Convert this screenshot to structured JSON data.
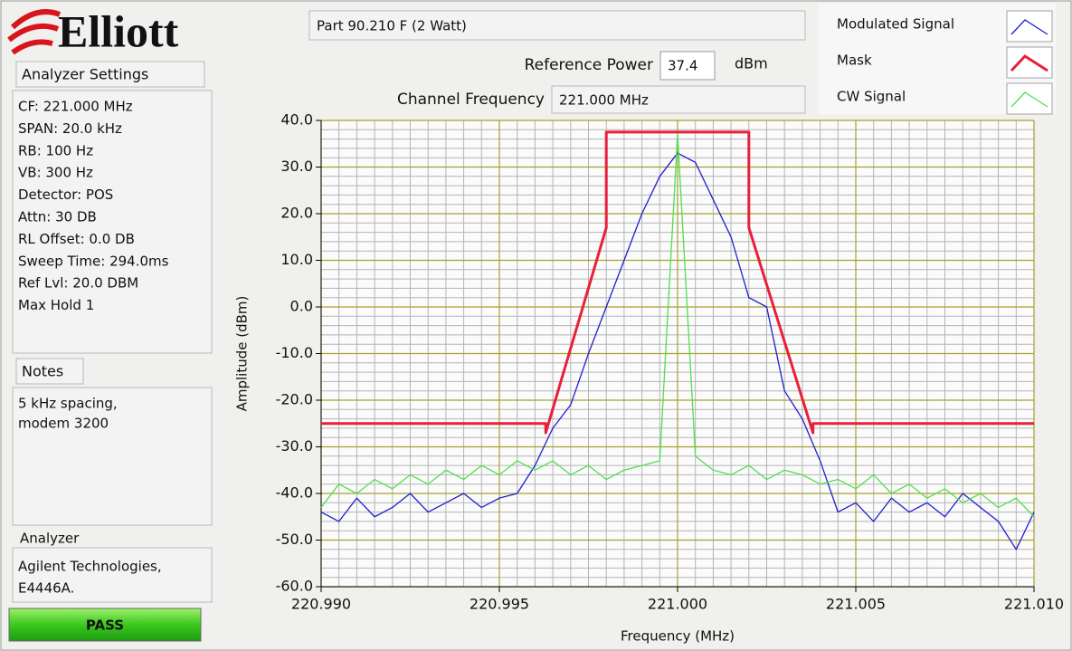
{
  "logo": {
    "text": "Elliott"
  },
  "settings": {
    "title": "Analyzer Settings",
    "items": [
      "CF: 221.000 MHz",
      "SPAN: 20.0 kHz",
      "RB: 100 Hz",
      "VB: 300 Hz",
      "Detector: POS",
      "Attn: 30 DB",
      "RL Offset: 0.0 DB",
      "Sweep Time: 294.0ms",
      "Ref Lvl: 20.0 DBM",
      "Max Hold 1"
    ]
  },
  "notes": {
    "title": "Notes",
    "lines": [
      "5 kHz spacing,",
      "modem 3200"
    ]
  },
  "analyzer": {
    "title": "Analyzer",
    "lines": [
      "Agilent Technologies,",
      "E4446A."
    ]
  },
  "status": {
    "label": "PASS"
  },
  "header": {
    "part": "Part 90.210 F (2 Watt)",
    "reference_power_label": "Reference Power",
    "reference_power_value": "37.4",
    "reference_power_unit": "dBm",
    "channel_frequency_label": "Channel Frequency",
    "channel_frequency_value": "221.000 MHz"
  },
  "chart_data": {
    "type": "line",
    "xlabel": "Frequency (MHz)",
    "ylabel": "Amplitude (dBm)",
    "legend": "top-right",
    "grid": true,
    "xlim": [
      220.99,
      221.01
    ],
    "ylim": [
      -60,
      40
    ],
    "xticks": [
      {
        "value": 220.99,
        "label": "220.990"
      },
      220.995,
      {
        "value": 221,
        "label": "221.000"
      },
      221.005,
      {
        "value": 221.01,
        "label": "221.010"
      }
    ],
    "yticks": [
      {
        "value": -60,
        "label": "-60.0"
      },
      {
        "value": -50,
        "label": "-50.0"
      },
      {
        "value": -40,
        "label": "-40.0"
      },
      {
        "value": -30,
        "label": "-30.0"
      },
      {
        "value": -20,
        "label": "-20.0"
      },
      {
        "value": -10,
        "label": "-10.0"
      },
      {
        "value": 0,
        "label": "0.0"
      },
      {
        "value": 10,
        "label": "10.0"
      },
      {
        "value": 20,
        "label": "20.0"
      },
      {
        "value": 30,
        "label": "30.0"
      },
      {
        "value": 40,
        "label": "40.0"
      }
    ],
    "x": [
      220.99,
      220.9905,
      220.991,
      220.9915,
      220.992,
      220.9925,
      220.993,
      220.9935,
      220.994,
      220.9945,
      220.995,
      220.9955,
      220.996,
      220.9965,
      220.997,
      220.9975,
      220.998,
      220.9985,
      220.999,
      220.9995,
      221,
      221.0005,
      221.001,
      221.0015,
      221.002,
      221.0025,
      221.003,
      221.0035,
      221.004,
      221.0045,
      221.005,
      221.0055,
      221.006,
      221.0065,
      221.007,
      221.0075,
      221.008,
      221.0085,
      221.009,
      221.0095,
      221.01
    ],
    "series": [
      {
        "name": "Modulated Signal",
        "color": "#1f1fd0",
        "width": 1.3,
        "values": [
          -44,
          -46,
          -41,
          -45,
          -43,
          -40,
          -44,
          -42,
          -40,
          -43,
          -41,
          -40,
          -34,
          -26,
          -21,
          -10,
          0,
          10,
          20,
          28,
          33,
          31,
          23,
          15,
          2,
          0,
          -18,
          -24,
          -33,
          -44,
          -42,
          -46,
          -41,
          -44,
          -42,
          -45,
          -40,
          -43,
          -46,
          -52,
          -44
        ]
      },
      {
        "name": "Mask",
        "color": "#e8203a",
        "width": 3,
        "x": [
          220.99,
          220.9963,
          220.9963,
          220.998,
          220.998,
          221.002,
          221.002,
          221.0038,
          221.0038,
          221.01
        ],
        "values": [
          -25,
          -25,
          -27,
          17,
          37.5,
          37.5,
          17,
          -27,
          -25,
          -25
        ]
      },
      {
        "name": "CW Signal",
        "color": "#4fe04f",
        "width": 1.3,
        "values": [
          -43,
          -38,
          -40,
          -37,
          -39,
          -36,
          -38,
          -35,
          -37,
          -34,
          -36,
          -33,
          -35,
          -33,
          -36,
          -34,
          -37,
          -35,
          -34,
          -33,
          37,
          -32,
          -35,
          -36,
          -34,
          -37,
          -35,
          -36,
          -38,
          -37,
          -39,
          -36,
          -40,
          -38,
          -41,
          -39,
          -42,
          -40,
          -43,
          -41,
          -45
        ]
      }
    ]
  }
}
